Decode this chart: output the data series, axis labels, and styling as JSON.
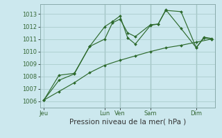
{
  "background_color": "#cce8ee",
  "grid_color": "#aacccc",
  "line_color": "#2d6a2d",
  "marker_color": "#2d6a2d",
  "title": "Pression niveau de la mer( hPa )",
  "ylim": [
    1005.5,
    1013.8
  ],
  "yticks": [
    1006,
    1007,
    1008,
    1009,
    1010,
    1011,
    1012,
    1013
  ],
  "title_fontsize": 7.5,
  "tick_fontsize": 6,
  "x_day_labels": [
    "Jeu",
    "Lun",
    "Ven",
    "Sam",
    "Dim"
  ],
  "x_day_positions": [
    0,
    48,
    60,
    84,
    120
  ],
  "xlim": [
    -3,
    135
  ],
  "vline_color": "#88aaaa",
  "series1_x": [
    0,
    12,
    24,
    36,
    48,
    54,
    60,
    66,
    72,
    84,
    90,
    96,
    108,
    120,
    126,
    132
  ],
  "series1_y": [
    1006.1,
    1007.7,
    1008.2,
    1010.4,
    1012.0,
    1012.4,
    1012.85,
    1011.1,
    1010.6,
    1012.1,
    1012.2,
    1013.3,
    1013.2,
    1010.3,
    1011.1,
    1011.0
  ],
  "series2_x": [
    0,
    12,
    24,
    36,
    48,
    54,
    60,
    66,
    72,
    84,
    90,
    96,
    108,
    120,
    126,
    132
  ],
  "series2_y": [
    1006.1,
    1008.1,
    1008.25,
    1010.4,
    1011.0,
    1012.3,
    1012.6,
    1011.5,
    1011.2,
    1012.15,
    1012.2,
    1013.35,
    1011.85,
    1010.3,
    1011.15,
    1011.05
  ],
  "series3_x": [
    0,
    12,
    24,
    36,
    48,
    60,
    72,
    84,
    96,
    108,
    120,
    132
  ],
  "series3_y": [
    1006.1,
    1006.8,
    1007.5,
    1008.3,
    1008.9,
    1009.3,
    1009.65,
    1010.0,
    1010.3,
    1010.5,
    1010.75,
    1011.0
  ]
}
